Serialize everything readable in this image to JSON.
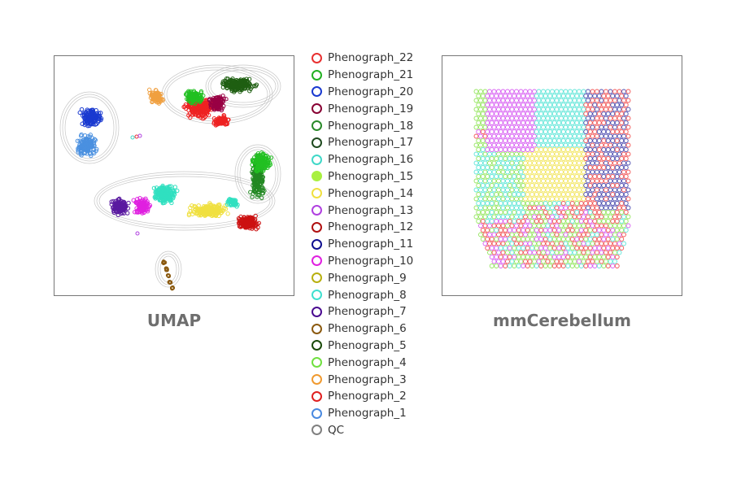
{
  "chart_data": [
    {
      "type": "scatter",
      "title": "UMAP",
      "grid": false,
      "legend": "center, between panels",
      "clusters": [
        {
          "name": "Phenograph_21",
          "color": "#22c022",
          "region": "top"
        },
        {
          "name": "Phenograph_5",
          "color": "#1f5f12",
          "region": "top"
        },
        {
          "name": "Phenograph_2",
          "color": "#ee2222",
          "region": "top"
        },
        {
          "name": "Phenograph_19",
          "color": "#990044",
          "region": "top"
        },
        {
          "name": "Phenograph_3",
          "color": "#f0a040",
          "region": "top"
        },
        {
          "name": "Phenograph_20",
          "color": "#1a3ad0",
          "region": "left"
        },
        {
          "name": "Phenograph_1",
          "color": "#4a90e0",
          "region": "left"
        },
        {
          "name": "Phenograph_7",
          "color": "#5a1aa0",
          "region": "middle"
        },
        {
          "name": "Phenograph_10",
          "color": "#e020e0",
          "region": "middle"
        },
        {
          "name": "Phenograph_16",
          "color": "#30e0c0",
          "region": "middle"
        },
        {
          "name": "Phenograph_14",
          "color": "#f0e040",
          "region": "middle"
        },
        {
          "name": "Phenograph_12",
          "color": "#cc1111",
          "region": "middle"
        },
        {
          "name": "Phenograph_18",
          "color": "#228822",
          "region": "middle"
        },
        {
          "name": "Phenograph_6",
          "color": "#8b5a10",
          "region": "bottom"
        }
      ]
    },
    {
      "type": "scatter",
      "title": "mmCerebellum",
      "grid": false,
      "regions": [
        {
          "name": "Phenograph_10",
          "color": "#d040f0"
        },
        {
          "name": "Phenograph_8",
          "color": "#40e0d0"
        },
        {
          "name": "Phenograph_14",
          "color": "#f0e040"
        },
        {
          "name": "Phenograph_4",
          "color": "#80e040"
        },
        {
          "name": "Phenograph_2",
          "color": "#ee3333"
        },
        {
          "name": "Phenograph_11",
          "color": "#2a2aa0"
        }
      ]
    }
  ],
  "legend": [
    {
      "label": "Phenograph_22",
      "color": "#e83030",
      "filled": false
    },
    {
      "label": "Phenograph_21",
      "color": "#22b022",
      "filled": false
    },
    {
      "label": "Phenograph_20",
      "color": "#1a3ad0",
      "filled": false
    },
    {
      "label": "Phenograph_19",
      "color": "#880033",
      "filled": false
    },
    {
      "label": "Phenograph_18",
      "color": "#2a8a2a",
      "filled": false
    },
    {
      "label": "Phenograph_17",
      "color": "#1f4a1f",
      "filled": false
    },
    {
      "label": "Phenograph_16",
      "color": "#40d8c8",
      "filled": false
    },
    {
      "label": "Phenograph_15",
      "color": "#a8f040",
      "filled": true
    },
    {
      "label": "Phenograph_14",
      "color": "#f0e040",
      "filled": false
    },
    {
      "label": "Phenograph_13",
      "color": "#b040e0",
      "filled": false
    },
    {
      "label": "Phenograph_12",
      "color": "#b01010",
      "filled": false
    },
    {
      "label": "Phenograph_11",
      "color": "#101090",
      "filled": false
    },
    {
      "label": "Phenograph_10",
      "color": "#e020e0",
      "filled": false
    },
    {
      "label": "Phenograph_9",
      "color": "#b8b010",
      "filled": false
    },
    {
      "label": "Phenograph_8",
      "color": "#40e0d0",
      "filled": false
    },
    {
      "label": "Phenograph_7",
      "color": "#4a0a90",
      "filled": false
    },
    {
      "label": "Phenograph_6",
      "color": "#8b5a10",
      "filled": false
    },
    {
      "label": "Phenograph_5",
      "color": "#1a4a0a",
      "filled": false
    },
    {
      "label": "Phenograph_4",
      "color": "#70e040",
      "filled": false
    },
    {
      "label": "Phenograph_3",
      "color": "#f09a30",
      "filled": false
    },
    {
      "label": "Phenograph_2",
      "color": "#e02020",
      "filled": false
    },
    {
      "label": "Phenograph_1",
      "color": "#4a8ae0",
      "filled": false
    },
    {
      "label": "QC",
      "color": "#808080",
      "filled": false
    }
  ]
}
